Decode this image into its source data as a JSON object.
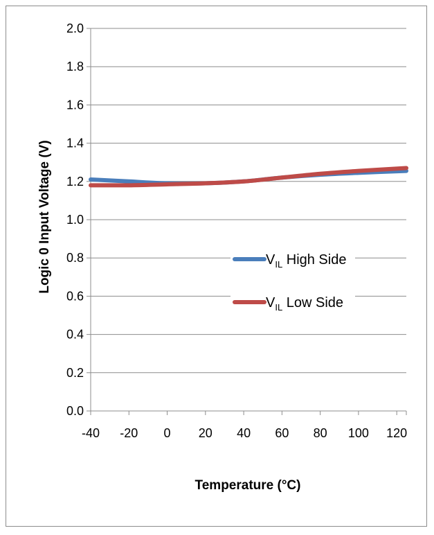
{
  "chart_data": {
    "type": "line",
    "title": "",
    "xlabel": "Temperature (°C)",
    "ylabel": "Logic 0 Input Voltage (V)",
    "xlim": [
      -40,
      125
    ],
    "ylim": [
      0,
      2
    ],
    "x_ticks": [
      "-40",
      "-20",
      "0",
      "20",
      "40",
      "60",
      "80",
      "100",
      "120"
    ],
    "y_ticks": [
      "0.0",
      "0.2",
      "0.4",
      "0.6",
      "0.8",
      "1.0",
      "1.2",
      "1.4",
      "1.6",
      "1.8",
      "2.0"
    ],
    "grid": "horizontal",
    "legend_position": "center-right",
    "series": [
      {
        "name_main": "V",
        "name_sub": "IL",
        "name_rest": " High Side",
        "color": "#4a7ebb",
        "x": [
          -40,
          -20,
          0,
          20,
          40,
          60,
          80,
          100,
          125
        ],
        "y": [
          1.21,
          1.2,
          1.19,
          1.19,
          1.2,
          1.22,
          1.235,
          1.245,
          1.255
        ]
      },
      {
        "name_main": "V",
        "name_sub": "IL",
        "name_rest": " Low Side",
        "color": "#be4b48",
        "x": [
          -40,
          -20,
          0,
          20,
          40,
          60,
          80,
          100,
          125
        ],
        "y": [
          1.18,
          1.18,
          1.185,
          1.19,
          1.2,
          1.22,
          1.24,
          1.255,
          1.27
        ]
      }
    ]
  }
}
